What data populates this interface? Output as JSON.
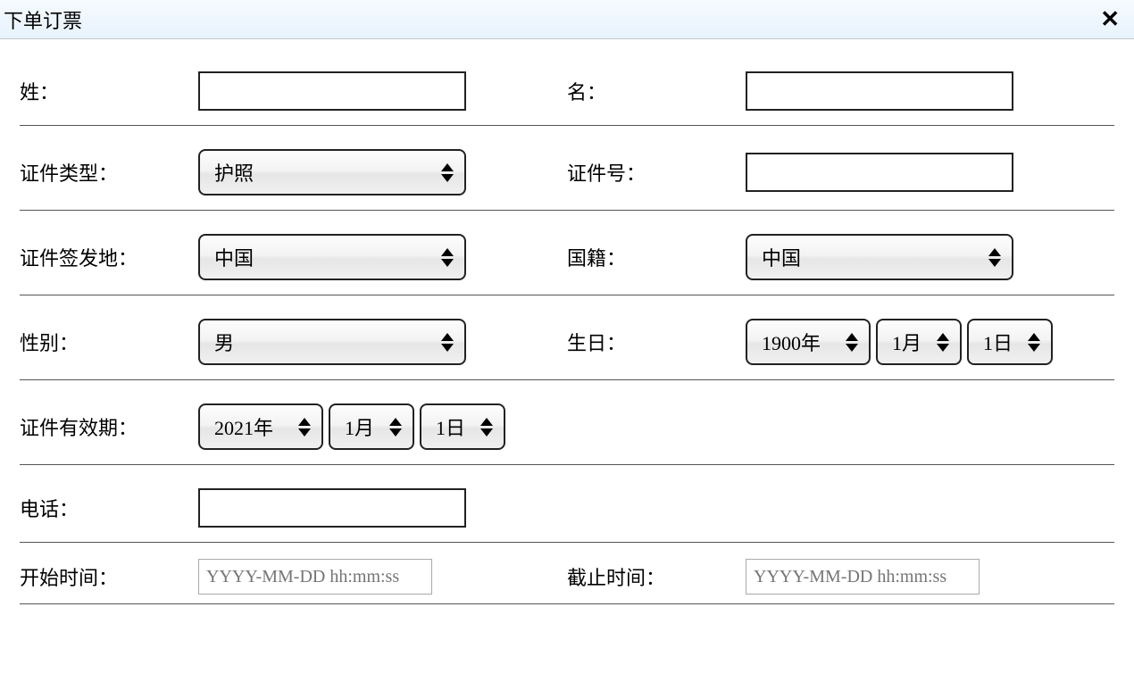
{
  "dialog": {
    "title": "下单订票"
  },
  "labels": {
    "surname": "姓：",
    "given_name": "名：",
    "id_type": "证件类型：",
    "id_number": "证件号：",
    "id_issue_place": "证件签发地：",
    "nationality": "国籍：",
    "gender": "性别：",
    "birthday": "生日：",
    "id_expiry": "证件有效期：",
    "phone": "电话：",
    "start_time": "开始时间：",
    "end_time": "截止时间："
  },
  "values": {
    "surname": "",
    "given_name": "",
    "id_type": "护照",
    "id_number": "",
    "id_issue_place": "中国",
    "nationality": "中国",
    "gender": "男",
    "birthday_year": "1900年",
    "birthday_month": "1月",
    "birthday_day": "1日",
    "expiry_year": "2021年",
    "expiry_month": "1月",
    "expiry_day": "1日",
    "phone": "",
    "start_time": "",
    "end_time": ""
  },
  "placeholders": {
    "datetime": "YYYY-MM-DD hh:mm:ss"
  }
}
